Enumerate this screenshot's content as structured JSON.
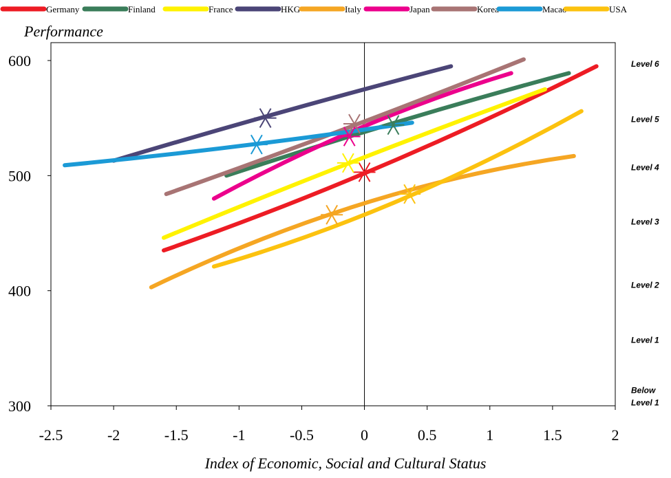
{
  "chart_data": {
    "type": "line",
    "ylabel": "Performance",
    "xlabel": "Index of Economic, Social and Cultural Status",
    "xlim": [
      -2.5,
      2
    ],
    "ylim": [
      300,
      600
    ],
    "x_ticks": [
      "-2.5",
      "-2",
      "-1.5",
      "-1",
      "-0.5",
      "0",
      "0.5",
      "1",
      "1.5",
      "2"
    ],
    "y_ticks": [
      "300",
      "400",
      "500",
      "600"
    ],
    "grid": false,
    "legend_position": "top",
    "levels": [
      {
        "label": "Level 6",
        "y": 597
      },
      {
        "label": "Level 5",
        "y": 549
      },
      {
        "label": "Level 4",
        "y": 507
      },
      {
        "label": "Level 3",
        "y": 460
      },
      {
        "label": "Level 2",
        "y": 405
      },
      {
        "label": "Level 1",
        "y": 357
      },
      {
        "label": "Below Level 1",
        "y": 308
      }
    ],
    "series": [
      {
        "name": "Germany",
        "color": "#ed1c24",
        "x": [
          -1.6,
          0,
          1.85
        ],
        "y": [
          435,
          502,
          595
        ],
        "marker": {
          "x": 0.0,
          "y": 503
        }
      },
      {
        "name": "Finland",
        "color": "#3a7d5a",
        "x": [
          -1.1,
          0,
          1.63
        ],
        "y": [
          500,
          538,
          589
        ],
        "marker": {
          "x": 0.23,
          "y": 544
        }
      },
      {
        "name": "France",
        "color": "#fff200",
        "x": [
          -1.6,
          0,
          1.44
        ],
        "y": [
          446,
          516,
          575
        ],
        "marker": {
          "x": -0.13,
          "y": 511
        }
      },
      {
        "name": "HKG",
        "color": "#4b4577",
        "x": [
          -2.0,
          0,
          0.69
        ],
        "y": [
          513,
          575,
          595
        ],
        "marker": {
          "x": -0.79,
          "y": 550
        }
      },
      {
        "name": "Italy",
        "color": "#f5a623",
        "x": [
          -1.7,
          0,
          1.67
        ],
        "y": [
          403,
          476,
          517
        ],
        "marker": {
          "x": -0.26,
          "y": 466
        }
      },
      {
        "name": "Japan",
        "color": "#ec008c",
        "x": [
          -1.2,
          0,
          1.17
        ],
        "y": [
          480,
          543,
          589
        ],
        "marker": {
          "x": -0.12,
          "y": 534
        }
      },
      {
        "name": "Korea",
        "color": "#a87474",
        "x": [
          -1.58,
          0,
          1.27
        ],
        "y": [
          484,
          547,
          601
        ],
        "marker": {
          "x": -0.08,
          "y": 545
        }
      },
      {
        "name": "Macao",
        "color": "#1b9ad6",
        "x": [
          -2.39,
          0,
          0.38
        ],
        "y": [
          509,
          540,
          546
        ],
        "marker": {
          "x": -0.86,
          "y": 527
        }
      },
      {
        "name": "USA",
        "color": "#fcc20f",
        "x": [
          -1.2,
          0,
          1.73
        ],
        "y": [
          421,
          466,
          556
        ],
        "marker": {
          "x": 0.36,
          "y": 484
        }
      }
    ]
  }
}
